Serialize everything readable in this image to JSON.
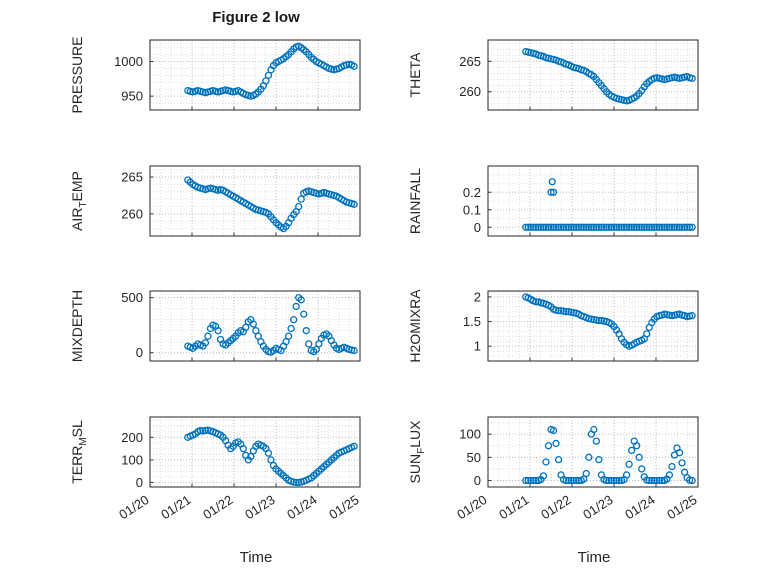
{
  "title": "Figure 2 low",
  "xlabel": "Time",
  "marker_color": "#0072BD",
  "x_tick_labels": [
    "01/20",
    "01/21",
    "01/22",
    "01/23",
    "01/24",
    "01/25"
  ],
  "chart_data": [
    {
      "name": "PRESSURE",
      "type": "scatter",
      "ylabel": {
        "pre": "PRESSURE",
        "sub": "",
        "post": ""
      },
      "ylim": [
        930,
        1031
      ],
      "yticks": [
        950,
        1000
      ],
      "y_minor_step": 10,
      "xlim": [
        0,
        5
      ],
      "x_minor_step": 0.25,
      "show_x_labels": false,
      "series": {
        "x_start": 0.9,
        "x_step": 0.06,
        "values": [
          958,
          957,
          956,
          957,
          958,
          957,
          956,
          955,
          956,
          957,
          958,
          957,
          956,
          957,
          958,
          959,
          958,
          957,
          956,
          957,
          958,
          956,
          954,
          952,
          951,
          950,
          951,
          953,
          956,
          960,
          965,
          972,
          980,
          988,
          994,
          998,
          1000,
          1002,
          1004,
          1007,
          1010,
          1014,
          1018,
          1021,
          1022,
          1020,
          1017,
          1014,
          1010,
          1006,
          1003,
          1000,
          998,
          996,
          994,
          992,
          990,
          989,
          988,
          989,
          990,
          992,
          994,
          995,
          996,
          995,
          993
        ]
      }
    },
    {
      "name": "THETA",
      "type": "scatter",
      "ylabel": {
        "pre": "THETA",
        "sub": "",
        "post": ""
      },
      "ylim": [
        257,
        268.5
      ],
      "yticks": [
        260,
        265
      ],
      "y_minor_step": 1,
      "xlim": [
        0,
        5
      ],
      "x_minor_step": 0.25,
      "show_x_labels": false,
      "series": {
        "x_start": 0.9,
        "x_step": 0.06,
        "values": [
          266.6,
          266.5,
          266.4,
          266.3,
          266.2,
          266.0,
          265.9,
          265.8,
          265.6,
          265.5,
          265.4,
          265.3,
          265.2,
          265.0,
          264.9,
          264.7,
          264.5,
          264.4,
          264.2,
          264.0,
          263.9,
          263.8,
          263.6,
          263.5,
          263.3,
          263.0,
          262.8,
          262.5,
          262.0,
          261.5,
          261.0,
          260.5,
          260.0,
          259.6,
          259.3,
          259.1,
          258.9,
          258.8,
          258.7,
          258.6,
          258.5,
          258.6,
          258.8,
          259.0,
          259.3,
          259.7,
          260.2,
          260.8,
          261.3,
          261.7,
          262.0,
          262.2,
          262.3,
          262.2,
          262.1,
          262.0,
          262.1,
          262.2,
          262.3,
          262.4,
          262.3,
          262.2,
          262.3,
          262.4,
          262.5,
          262.3,
          262.2
        ]
      }
    },
    {
      "name": "AIR_TEMP",
      "type": "scatter",
      "ylabel": {
        "pre": "AIR",
        "sub": "T",
        "post": "EMP"
      },
      "ylim": [
        257,
        266.5
      ],
      "yticks": [
        260,
        265
      ],
      "y_minor_step": 1,
      "xlim": [
        0,
        5
      ],
      "x_minor_step": 0.25,
      "show_x_labels": false,
      "series": {
        "x_start": 0.9,
        "x_step": 0.06,
        "values": [
          264.6,
          264.3,
          264.0,
          263.8,
          263.6,
          263.5,
          263.4,
          263.3,
          263.4,
          263.5,
          263.4,
          263.3,
          263.2,
          263.3,
          263.2,
          263.0,
          262.8,
          262.6,
          262.4,
          262.2,
          262.0,
          261.8,
          261.6,
          261.4,
          261.2,
          261.0,
          260.8,
          260.6,
          260.5,
          260.4,
          260.3,
          260.2,
          260.0,
          259.6,
          259.2,
          258.8,
          258.5,
          258.2,
          258.0,
          258.3,
          258.8,
          259.4,
          259.9,
          260.3,
          261.0,
          262.0,
          262.8,
          263.0,
          263.1,
          263.0,
          262.9,
          262.8,
          262.7,
          262.8,
          262.9,
          262.8,
          262.7,
          262.6,
          262.5,
          262.4,
          262.2,
          262.0,
          261.8,
          261.6,
          261.5,
          261.4,
          261.3
        ]
      }
    },
    {
      "name": "RAINFALL",
      "type": "scatter",
      "ylabel": {
        "pre": "RAINFALL",
        "sub": "",
        "post": ""
      },
      "ylim": [
        -0.05,
        0.35
      ],
      "yticks": [
        0,
        0.1,
        0.2
      ],
      "y_minor_step": 0.05,
      "xlim": [
        0,
        5
      ],
      "x_minor_step": 0.25,
      "show_x_labels": false,
      "series": {
        "x_start": 0.9,
        "x_step": 0.06,
        "values": [
          0,
          0,
          0,
          0,
          0,
          0,
          0,
          0,
          0,
          0,
          0,
          0,
          0,
          0,
          0,
          0,
          0,
          0,
          0,
          0,
          0,
          0,
          0,
          0,
          0,
          0,
          0,
          0,
          0,
          0,
          0,
          0,
          0,
          0,
          0,
          0,
          0,
          0,
          0,
          0,
          0,
          0,
          0,
          0,
          0,
          0,
          0,
          0,
          0,
          0,
          0,
          0,
          0,
          0,
          0,
          0,
          0,
          0,
          0,
          0,
          0,
          0,
          0,
          0,
          0,
          0,
          0
        ]
      },
      "extra_points": [
        [
          1.5,
          0.2
        ],
        [
          1.56,
          0.2
        ],
        [
          1.53,
          0.26
        ]
      ]
    },
    {
      "name": "MIXDEPTH",
      "type": "scatter",
      "ylabel": {
        "pre": "MIXDEPTH",
        "sub": "",
        "post": ""
      },
      "ylim": [
        -75,
        560
      ],
      "yticks": [
        0,
        500
      ],
      "y_minor_step": 100,
      "xlim": [
        0,
        5
      ],
      "x_minor_step": 0.25,
      "show_x_labels": false,
      "series": {
        "x_start": 0.9,
        "x_step": 0.06,
        "values": [
          60,
          50,
          40,
          60,
          80,
          70,
          60,
          90,
          150,
          220,
          250,
          240,
          200,
          120,
          80,
          70,
          90,
          110,
          130,
          150,
          180,
          200,
          190,
          230,
          280,
          300,
          260,
          200,
          150,
          100,
          60,
          30,
          10,
          5,
          20,
          40,
          30,
          20,
          60,
          100,
          150,
          220,
          300,
          420,
          500,
          480,
          350,
          200,
          80,
          20,
          10,
          30,
          80,
          130,
          160,
          170,
          150,
          110,
          70,
          40,
          30,
          40,
          50,
          40,
          30,
          25,
          20
        ]
      }
    },
    {
      "name": "H2OMIXRA",
      "type": "scatter",
      "ylabel": {
        "pre": "H2OMIXRA",
        "sub": "",
        "post": ""
      },
      "ylim": [
        0.7,
        2.12
      ],
      "yticks": [
        1,
        1.5,
        2
      ],
      "y_minor_step": 0.1,
      "xlim": [
        0,
        5
      ],
      "x_minor_step": 0.25,
      "show_x_labels": false,
      "series": {
        "x_start": 0.9,
        "x_step": 0.06,
        "values": [
          2.0,
          1.98,
          1.95,
          1.92,
          1.9,
          1.9,
          1.88,
          1.87,
          1.85,
          1.83,
          1.8,
          1.75,
          1.73,
          1.72,
          1.72,
          1.71,
          1.7,
          1.7,
          1.69,
          1.68,
          1.67,
          1.65,
          1.62,
          1.6,
          1.58,
          1.56,
          1.55,
          1.54,
          1.53,
          1.52,
          1.52,
          1.51,
          1.5,
          1.48,
          1.45,
          1.4,
          1.33,
          1.25,
          1.15,
          1.08,
          1.03,
          1.0,
          1.02,
          1.05,
          1.08,
          1.1,
          1.12,
          1.15,
          1.25,
          1.38,
          1.48,
          1.55,
          1.6,
          1.62,
          1.63,
          1.65,
          1.64,
          1.63,
          1.62,
          1.63,
          1.64,
          1.65,
          1.63,
          1.62,
          1.6,
          1.61,
          1.62
        ]
      }
    },
    {
      "name": "TERR_MSL",
      "type": "scatter",
      "ylabel": {
        "pre": "TERR",
        "sub": "M",
        "post": "SL"
      },
      "ylim": [
        -20,
        290
      ],
      "yticks": [
        0,
        100,
        200
      ],
      "y_minor_step": 25,
      "xlim": [
        0,
        5
      ],
      "x_minor_step": 0.25,
      "show_x_labels": true,
      "series": {
        "x_start": 0.9,
        "x_step": 0.06,
        "values": [
          200,
          205,
          210,
          215,
          225,
          230,
          228,
          230,
          232,
          228,
          225,
          220,
          215,
          210,
          200,
          185,
          165,
          150,
          160,
          175,
          180,
          170,
          150,
          120,
          100,
          115,
          140,
          160,
          170,
          165,
          160,
          150,
          130,
          100,
          75,
          60,
          50,
          40,
          30,
          20,
          10,
          5,
          2,
          0,
          0,
          2,
          5,
          10,
          15,
          20,
          30,
          40,
          50,
          60,
          70,
          80,
          90,
          100,
          110,
          120,
          130,
          135,
          140,
          145,
          150,
          155,
          160
        ]
      }
    },
    {
      "name": "SUN_FLUX",
      "type": "scatter",
      "ylabel": {
        "pre": "SUN",
        "sub": "F",
        "post": "LUX"
      },
      "ylim": [
        -14,
        137
      ],
      "yticks": [
        0,
        50,
        100
      ],
      "y_minor_step": 25,
      "xlim": [
        0,
        5
      ],
      "x_minor_step": 0.25,
      "show_x_labels": true,
      "series": {
        "x_start": 0.9,
        "x_step": 0.06,
        "values": [
          0,
          0,
          0,
          0,
          0,
          0,
          2,
          10,
          40,
          75,
          110,
          108,
          80,
          45,
          12,
          2,
          0,
          0,
          0,
          0,
          0,
          0,
          0,
          3,
          15,
          50,
          100,
          110,
          85,
          45,
          12,
          2,
          0,
          0,
          0,
          0,
          0,
          0,
          0,
          2,
          12,
          35,
          65,
          85,
          75,
          50,
          25,
          8,
          1,
          0,
          0,
          0,
          0,
          0,
          0,
          0,
          3,
          12,
          30,
          55,
          70,
          60,
          38,
          18,
          6,
          1,
          0
        ]
      }
    }
  ]
}
